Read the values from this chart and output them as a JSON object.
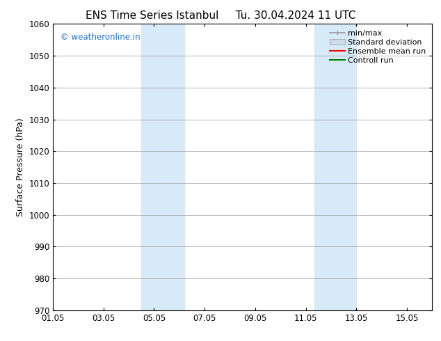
{
  "title_left": "ENS Time Series Istanbul",
  "title_right": "Tu. 30.04.2024 11 UTC",
  "ylabel": "Surface Pressure (hPa)",
  "ylim": [
    970,
    1060
  ],
  "yticks": [
    970,
    980,
    990,
    1000,
    1010,
    1020,
    1030,
    1040,
    1050,
    1060
  ],
  "xlim": [
    0,
    15
  ],
  "xtick_labels": [
    "01.05",
    "03.05",
    "05.05",
    "07.05",
    "09.05",
    "11.05",
    "13.05",
    "15.05"
  ],
  "xtick_positions": [
    0,
    2,
    4,
    6,
    8,
    10,
    12,
    14
  ],
  "shaded_bands": [
    {
      "x_start": 3.5,
      "x_end": 5.2
    },
    {
      "x_start": 10.35,
      "x_end": 12.0
    }
  ],
  "shade_color": "#d6eaf8",
  "watermark_text": "© weatheronline.in",
  "watermark_color": "#1a6fd4",
  "background_color": "#ffffff",
  "grid_color": "#999999",
  "legend_items": [
    {
      "label": "min/max",
      "color": "#999999",
      "type": "minmax"
    },
    {
      "label": "Standard deviation",
      "color": "#ccddee",
      "type": "band"
    },
    {
      "label": "Ensemble mean run",
      "color": "#ff0000",
      "type": "line"
    },
    {
      "label": "Controll run",
      "color": "#008000",
      "type": "line"
    }
  ],
  "title_fontsize": 11,
  "axis_fontsize": 9,
  "tick_fontsize": 8.5,
  "watermark_fontsize": 8.5,
  "legend_fontsize": 8
}
